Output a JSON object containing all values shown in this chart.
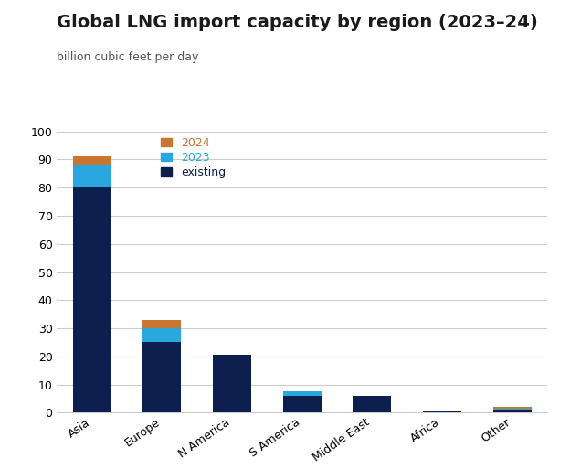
{
  "title": "Global LNG import capacity by region (2023–24)",
  "subtitle": "billion cubic feet per day",
  "categories": [
    "Asia",
    "Europe",
    "N America",
    "S America",
    "Middle East",
    "Africa",
    "Other"
  ],
  "existing": [
    80,
    25,
    20.5,
    6,
    6,
    0.5,
    1.0
  ],
  "new_2023": [
    8,
    5,
    0,
    1.5,
    0,
    0,
    0.5
  ],
  "new_2024": [
    3,
    3,
    0,
    0,
    0,
    0,
    0.5
  ],
  "color_existing": "#0d1f4e",
  "color_2023": "#29a8e0",
  "color_2024": "#c87631",
  "ylim": [
    0,
    100
  ],
  "yticks": [
    0,
    10,
    20,
    30,
    40,
    50,
    60,
    70,
    80,
    90,
    100
  ],
  "legend_labels": [
    "2024",
    "2023",
    "existing"
  ],
  "legend_colors": [
    "#c87631",
    "#29a8e0",
    "#0d1f4e"
  ],
  "background_color": "#ffffff",
  "grid_color": "#cccccc",
  "bar_width": 0.55,
  "title_fontsize": 14,
  "subtitle_fontsize": 9,
  "tick_fontsize": 9,
  "legend_fontsize": 9
}
